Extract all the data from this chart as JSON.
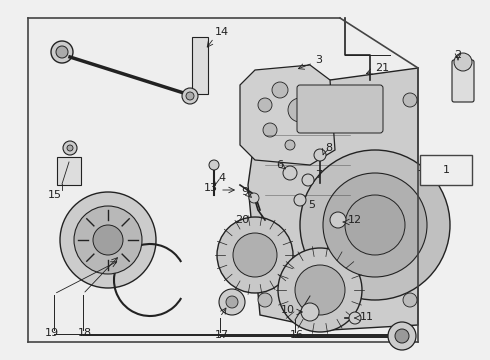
{
  "background_color": "#f0f0f0",
  "border_color": "#444444",
  "line_color": "#222222",
  "label_fontsize": 8,
  "box_bg": "#eeeeee",
  "parts": [
    {
      "num": "1"
    },
    {
      "num": "2"
    },
    {
      "num": "3"
    },
    {
      "num": "4"
    },
    {
      "num": "5"
    },
    {
      "num": "6"
    },
    {
      "num": "7"
    },
    {
      "num": "8"
    },
    {
      "num": "9"
    },
    {
      "num": "10"
    },
    {
      "num": "11"
    },
    {
      "num": "12"
    },
    {
      "num": "13"
    },
    {
      "num": "14"
    },
    {
      "num": "15"
    },
    {
      "num": "16"
    },
    {
      "num": "17"
    },
    {
      "num": "18"
    },
    {
      "num": "19"
    },
    {
      "num": "20"
    },
    {
      "num": "21"
    }
  ]
}
